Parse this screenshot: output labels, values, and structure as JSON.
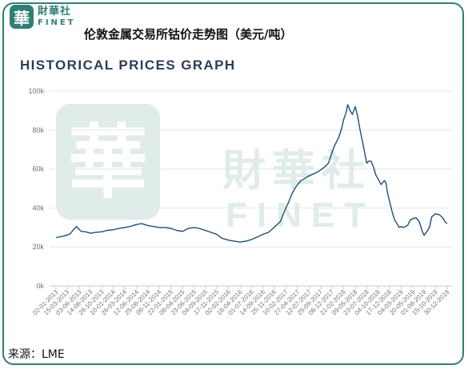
{
  "brand": {
    "seal": "華",
    "name_cn": "財華社",
    "name_en": "FINET"
  },
  "page_title": "伦敦金属交易所钴价走势图（美元/吨）",
  "colors": {
    "line": "#1f4e79",
    "brand": "#2f7f73",
    "grid": "#e3e6ea",
    "axis": "#c6cad0"
  },
  "chart_data": {
    "type": "line",
    "title": "HISTORICAL PRICES GRAPH",
    "xlabel": "",
    "ylabel": "",
    "ylim": [
      0,
      100000
    ],
    "yticks": [
      "0k",
      "20k",
      "40k",
      "60k",
      "80k",
      "100k"
    ],
    "grid": true,
    "legend": "none",
    "xticks": [
      "02-01-2013",
      "15-03-2013",
      "03-06-2013",
      "14-08-2013",
      "28-10-2013",
      "10-01-2014",
      "26-03-2014",
      "12-06-2014",
      "25-08-2014",
      "06-11-2014",
      "22-01-2015",
      "08-04-2015",
      "23-06-2015",
      "04-09-2015",
      "17-11-2015",
      "02-02-2016",
      "18-04-2016",
      "01-07-2016",
      "14-09-2016",
      "25-11-2016",
      "10-02-2017",
      "27-04-2017",
      "12-07-2017",
      "25-09-2017",
      "06-12-2017",
      "21-02-2018",
      "09-05-2018",
      "23-07-2018",
      "04-10-2018",
      "17-12-2018",
      "04-03-2019",
      "20-05-2019",
      "01-08-2019",
      "15-10-2019",
      "30-12-2019"
    ],
    "series": [
      {
        "x": [
          "2013-01-02",
          "2013-02-15",
          "2013-04-01",
          "2013-05-15",
          "2013-06-15",
          "2013-07-15",
          "2013-08-15",
          "2013-09-15",
          "2013-10-28",
          "2013-12-01",
          "2014-01-10",
          "2014-02-15",
          "2014-03-26",
          "2014-05-01",
          "2014-06-12",
          "2014-07-15",
          "2014-08-25",
          "2014-10-01",
          "2014-11-06",
          "2014-12-15",
          "2015-01-22",
          "2015-03-01",
          "2015-04-08",
          "2015-05-15",
          "2015-06-23",
          "2015-07-25",
          "2015-09-04",
          "2015-10-10",
          "2015-11-17",
          "2015-12-20",
          "2016-02-02",
          "2016-03-10",
          "2016-04-18",
          "2016-05-25",
          "2016-07-01",
          "2016-08-05",
          "2016-09-14",
          "2016-10-20",
          "2016-11-25",
          "2017-01-05",
          "2017-02-10",
          "2017-03-01",
          "2017-03-20",
          "2017-04-10",
          "2017-04-27",
          "2017-05-20",
          "2017-06-10",
          "2017-07-12",
          "2017-08-10",
          "2017-09-05",
          "2017-09-25",
          "2017-10-20",
          "2017-11-15",
          "2017-12-06",
          "2017-12-25",
          "2018-01-20",
          "2018-02-10",
          "2018-02-21",
          "2018-03-10",
          "2018-03-21",
          "2018-04-05",
          "2018-04-20",
          "2018-05-09",
          "2018-05-25",
          "2018-06-05",
          "2018-06-12",
          "2018-06-25",
          "2018-07-10",
          "2018-07-23",
          "2018-08-05",
          "2018-08-20",
          "2018-09-05",
          "2018-09-20",
          "2018-10-04",
          "2018-10-25",
          "2018-11-15",
          "2018-11-25",
          "2018-12-05",
          "2018-12-17",
          "2019-01-05",
          "2019-01-20",
          "2019-02-05",
          "2019-02-20",
          "2019-03-04",
          "2019-03-20",
          "2019-04-15",
          "2019-05-05",
          "2019-05-20",
          "2019-06-10",
          "2019-07-01",
          "2019-07-20",
          "2019-08-01",
          "2019-08-20",
          "2019-09-05",
          "2019-09-20",
          "2019-10-15",
          "2019-11-10",
          "2019-12-01",
          "2019-12-15",
          "2019-12-30"
        ],
        "values": [
          24800,
          25500,
          26500,
          30500,
          28000,
          27800,
          27000,
          27500,
          27800,
          28500,
          28800,
          29500,
          30000,
          30500,
          31500,
          32000,
          31000,
          30500,
          30000,
          30000,
          29500,
          28500,
          28000,
          29500,
          30000,
          29500,
          28500,
          27500,
          26500,
          24500,
          23500,
          23000,
          22500,
          23000,
          23800,
          25000,
          26500,
          27500,
          30000,
          33000,
          40000,
          43000,
          47000,
          50000,
          52000,
          54000,
          55000,
          56500,
          57500,
          58500,
          59500,
          61000,
          63000,
          68000,
          72000,
          76000,
          81000,
          85000,
          89000,
          93000,
          90000,
          88000,
          92000,
          87000,
          82000,
          79000,
          74000,
          68000,
          63000,
          64000,
          64000,
          61000,
          57000,
          55000,
          52000,
          54000,
          53000,
          48000,
          44000,
          38000,
          34000,
          32000,
          30000,
          30500,
          30000,
          31000,
          34000,
          34500,
          35000,
          33000,
          28000,
          26000,
          28000,
          30000,
          35500,
          37000,
          36500,
          35000,
          33000,
          32000
        ]
      }
    ]
  },
  "watermark": {
    "seal": "華",
    "name_cn": "財華社",
    "name_en": "FINET"
  },
  "source": "来源：LME"
}
